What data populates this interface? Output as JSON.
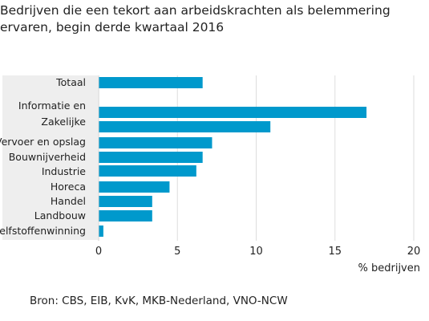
{
  "chart_data": {
    "type": "bar",
    "orientation": "horizontal",
    "title_lines": [
      "Bedrijven die een tekort aan arbeidskrachten als belemmering",
      "ervaren, begin derde kwartaal 2016"
    ],
    "categories": [
      "Totaal",
      "Informatie en",
      "Zakelijke",
      "Vervoer en opslag",
      "Bouwnijverheid",
      "Industrie",
      "Horeca",
      "Handel",
      "Landbouw",
      "Delfstoffenwinning"
    ],
    "values": [
      6.6,
      17.0,
      10.9,
      7.2,
      6.6,
      6.2,
      4.5,
      3.4,
      3.4,
      0.3
    ],
    "xlabel": "% bedrijven",
    "ylabel": "",
    "xlim": [
      0,
      20
    ],
    "xticks": [
      "0",
      "5",
      "10",
      "15",
      "20"
    ],
    "bar_color": "#0099cc",
    "label_panel_color": "#eeeeee",
    "grid": true,
    "source": "Bron: CBS, EIB, KvK, MKB-Nederland, VNO-NCW"
  }
}
